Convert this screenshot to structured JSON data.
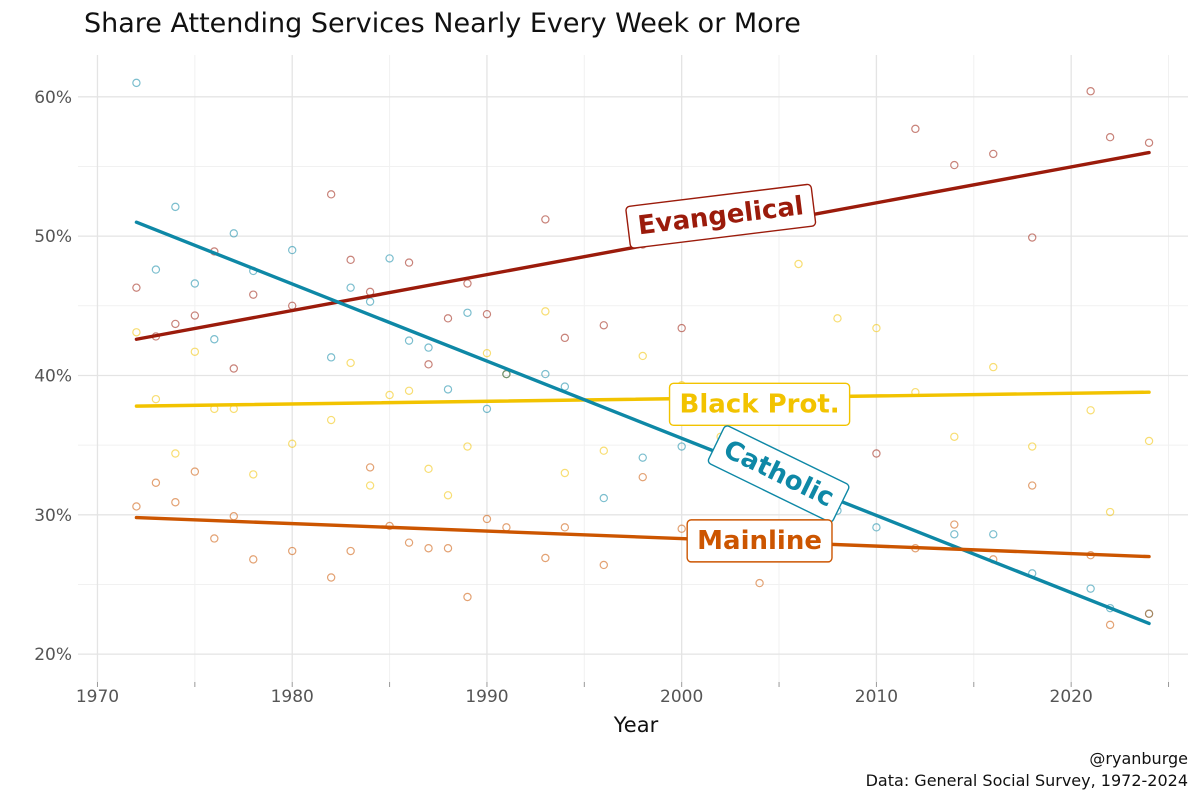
{
  "chart_data": {
    "type": "scatter",
    "title": "Share Attending Services Nearly Every Week or More",
    "xlabel": "Year",
    "ylabel": "",
    "xlim": [
      1969,
      2026
    ],
    "ylim": [
      18,
      63
    ],
    "x_ticks": [
      1970,
      1980,
      1990,
      2000,
      2010,
      2020
    ],
    "y_ticks": [
      20,
      30,
      40,
      50,
      60
    ],
    "y_tick_labels": [
      "20%",
      "30%",
      "40%",
      "50%",
      "60%"
    ],
    "grid": true,
    "series": [
      {
        "name": "Evangelical",
        "color": "#9B1B0B",
        "trend": [
          [
            1972,
            42.6
          ],
          [
            2024,
            56.0
          ]
        ],
        "label_at": [
          2002,
          51.5
        ],
        "label_angle": -7,
        "points": [
          [
            1972,
            46.3
          ],
          [
            1973,
            42.8
          ],
          [
            1974,
            43.7
          ],
          [
            1975,
            44.3
          ],
          [
            1976,
            48.9
          ],
          [
            1977,
            40.5
          ],
          [
            1978,
            45.8
          ],
          [
            1980,
            45.0
          ],
          [
            1982,
            53.0
          ],
          [
            1983,
            48.3
          ],
          [
            1984,
            46.0
          ],
          [
            1986,
            48.1
          ],
          [
            1987,
            40.8
          ],
          [
            1988,
            44.1
          ],
          [
            1989,
            46.6
          ],
          [
            1990,
            44.4
          ],
          [
            1991,
            40.1
          ],
          [
            1993,
            51.2
          ],
          [
            1994,
            42.7
          ],
          [
            1996,
            43.6
          ],
          [
            1998,
            49.4
          ],
          [
            2000,
            43.4
          ],
          [
            2010,
            34.4
          ],
          [
            2012,
            57.7
          ],
          [
            2014,
            55.1
          ],
          [
            2016,
            55.9
          ],
          [
            2018,
            49.9
          ],
          [
            2021,
            60.4
          ],
          [
            2022,
            57.1
          ],
          [
            2024,
            56.7
          ]
        ]
      },
      {
        "name": "Black Prot.",
        "color": "#F2C300",
        "trend": [
          [
            1972,
            37.8
          ],
          [
            2024,
            38.8
          ]
        ],
        "label_at": [
          2004,
          38.0
        ],
        "label_angle": 0,
        "points": [
          [
            1972,
            43.1
          ],
          [
            1973,
            38.3
          ],
          [
            1974,
            34.4
          ],
          [
            1975,
            41.7
          ],
          [
            1976,
            37.6
          ],
          [
            1977,
            37.6
          ],
          [
            1978,
            32.9
          ],
          [
            1980,
            35.1
          ],
          [
            1982,
            36.8
          ],
          [
            1983,
            40.9
          ],
          [
            1984,
            32.1
          ],
          [
            1985,
            38.6
          ],
          [
            1986,
            38.9
          ],
          [
            1987,
            33.3
          ],
          [
            1988,
            31.4
          ],
          [
            1989,
            34.9
          ],
          [
            1990,
            41.6
          ],
          [
            1991,
            40.1
          ],
          [
            1993,
            44.6
          ],
          [
            1994,
            33.0
          ],
          [
            1996,
            34.6
          ],
          [
            1998,
            41.4
          ],
          [
            2000,
            39.3
          ],
          [
            2002,
            35.6
          ],
          [
            2006,
            48.0
          ],
          [
            2008,
            44.1
          ],
          [
            2010,
            43.4
          ],
          [
            2012,
            38.8
          ],
          [
            2014,
            35.6
          ],
          [
            2016,
            40.6
          ],
          [
            2018,
            34.9
          ],
          [
            2021,
            37.5
          ],
          [
            2022,
            30.2
          ],
          [
            2024,
            35.3
          ]
        ]
      },
      {
        "name": "Catholic",
        "color": "#0E88A6",
        "trend": [
          [
            1972,
            51.0
          ],
          [
            2024,
            22.2
          ]
        ],
        "label_at": [
          2005,
          33.0
        ],
        "label_angle": 26,
        "points": [
          [
            1972,
            61.0
          ],
          [
            1973,
            47.6
          ],
          [
            1974,
            52.1
          ],
          [
            1975,
            46.6
          ],
          [
            1976,
            42.6
          ],
          [
            1977,
            50.2
          ],
          [
            1978,
            47.5
          ],
          [
            1980,
            49.0
          ],
          [
            1982,
            41.3
          ],
          [
            1983,
            46.3
          ],
          [
            1984,
            45.3
          ],
          [
            1985,
            48.4
          ],
          [
            1986,
            42.5
          ],
          [
            1987,
            42.0
          ],
          [
            1988,
            39.0
          ],
          [
            1989,
            44.5
          ],
          [
            1990,
            37.6
          ],
          [
            1991,
            40.1
          ],
          [
            1993,
            40.1
          ],
          [
            1994,
            39.2
          ],
          [
            1996,
            31.2
          ],
          [
            1998,
            34.1
          ],
          [
            2000,
            34.9
          ],
          [
            2002,
            34.8
          ],
          [
            2008,
            30.3
          ],
          [
            2010,
            29.1
          ],
          [
            2014,
            28.6
          ],
          [
            2016,
            28.6
          ],
          [
            2018,
            25.8
          ],
          [
            2021,
            24.7
          ],
          [
            2022,
            23.3
          ],
          [
            2024,
            22.9
          ]
        ]
      },
      {
        "name": "Mainline",
        "color": "#CC5500",
        "trend": [
          [
            1972,
            29.8
          ],
          [
            2024,
            27.0
          ]
        ],
        "label_at": [
          2004,
          28.2
        ],
        "label_angle": 0,
        "points": [
          [
            1972,
            30.6
          ],
          [
            1973,
            32.3
          ],
          [
            1974,
            30.9
          ],
          [
            1975,
            33.1
          ],
          [
            1976,
            28.3
          ],
          [
            1977,
            29.9
          ],
          [
            1978,
            26.8
          ],
          [
            1980,
            27.4
          ],
          [
            1982,
            25.5
          ],
          [
            1983,
            27.4
          ],
          [
            1984,
            33.4
          ],
          [
            1985,
            29.2
          ],
          [
            1986,
            28.0
          ],
          [
            1987,
            27.6
          ],
          [
            1988,
            27.6
          ],
          [
            1989,
            24.1
          ],
          [
            1990,
            29.7
          ],
          [
            1991,
            29.1
          ],
          [
            1993,
            26.9
          ],
          [
            1994,
            29.1
          ],
          [
            1996,
            26.4
          ],
          [
            1998,
            32.7
          ],
          [
            2000,
            29.0
          ],
          [
            2004,
            25.1
          ],
          [
            2012,
            27.6
          ],
          [
            2014,
            29.3
          ],
          [
            2016,
            26.8
          ],
          [
            2018,
            32.1
          ],
          [
            2021,
            27.1
          ],
          [
            2022,
            22.1
          ],
          [
            2024,
            22.9
          ]
        ]
      }
    ]
  },
  "caption": {
    "line1": "@ryanburge",
    "line2": "Data: General Social Survey, 1972-2024"
  }
}
